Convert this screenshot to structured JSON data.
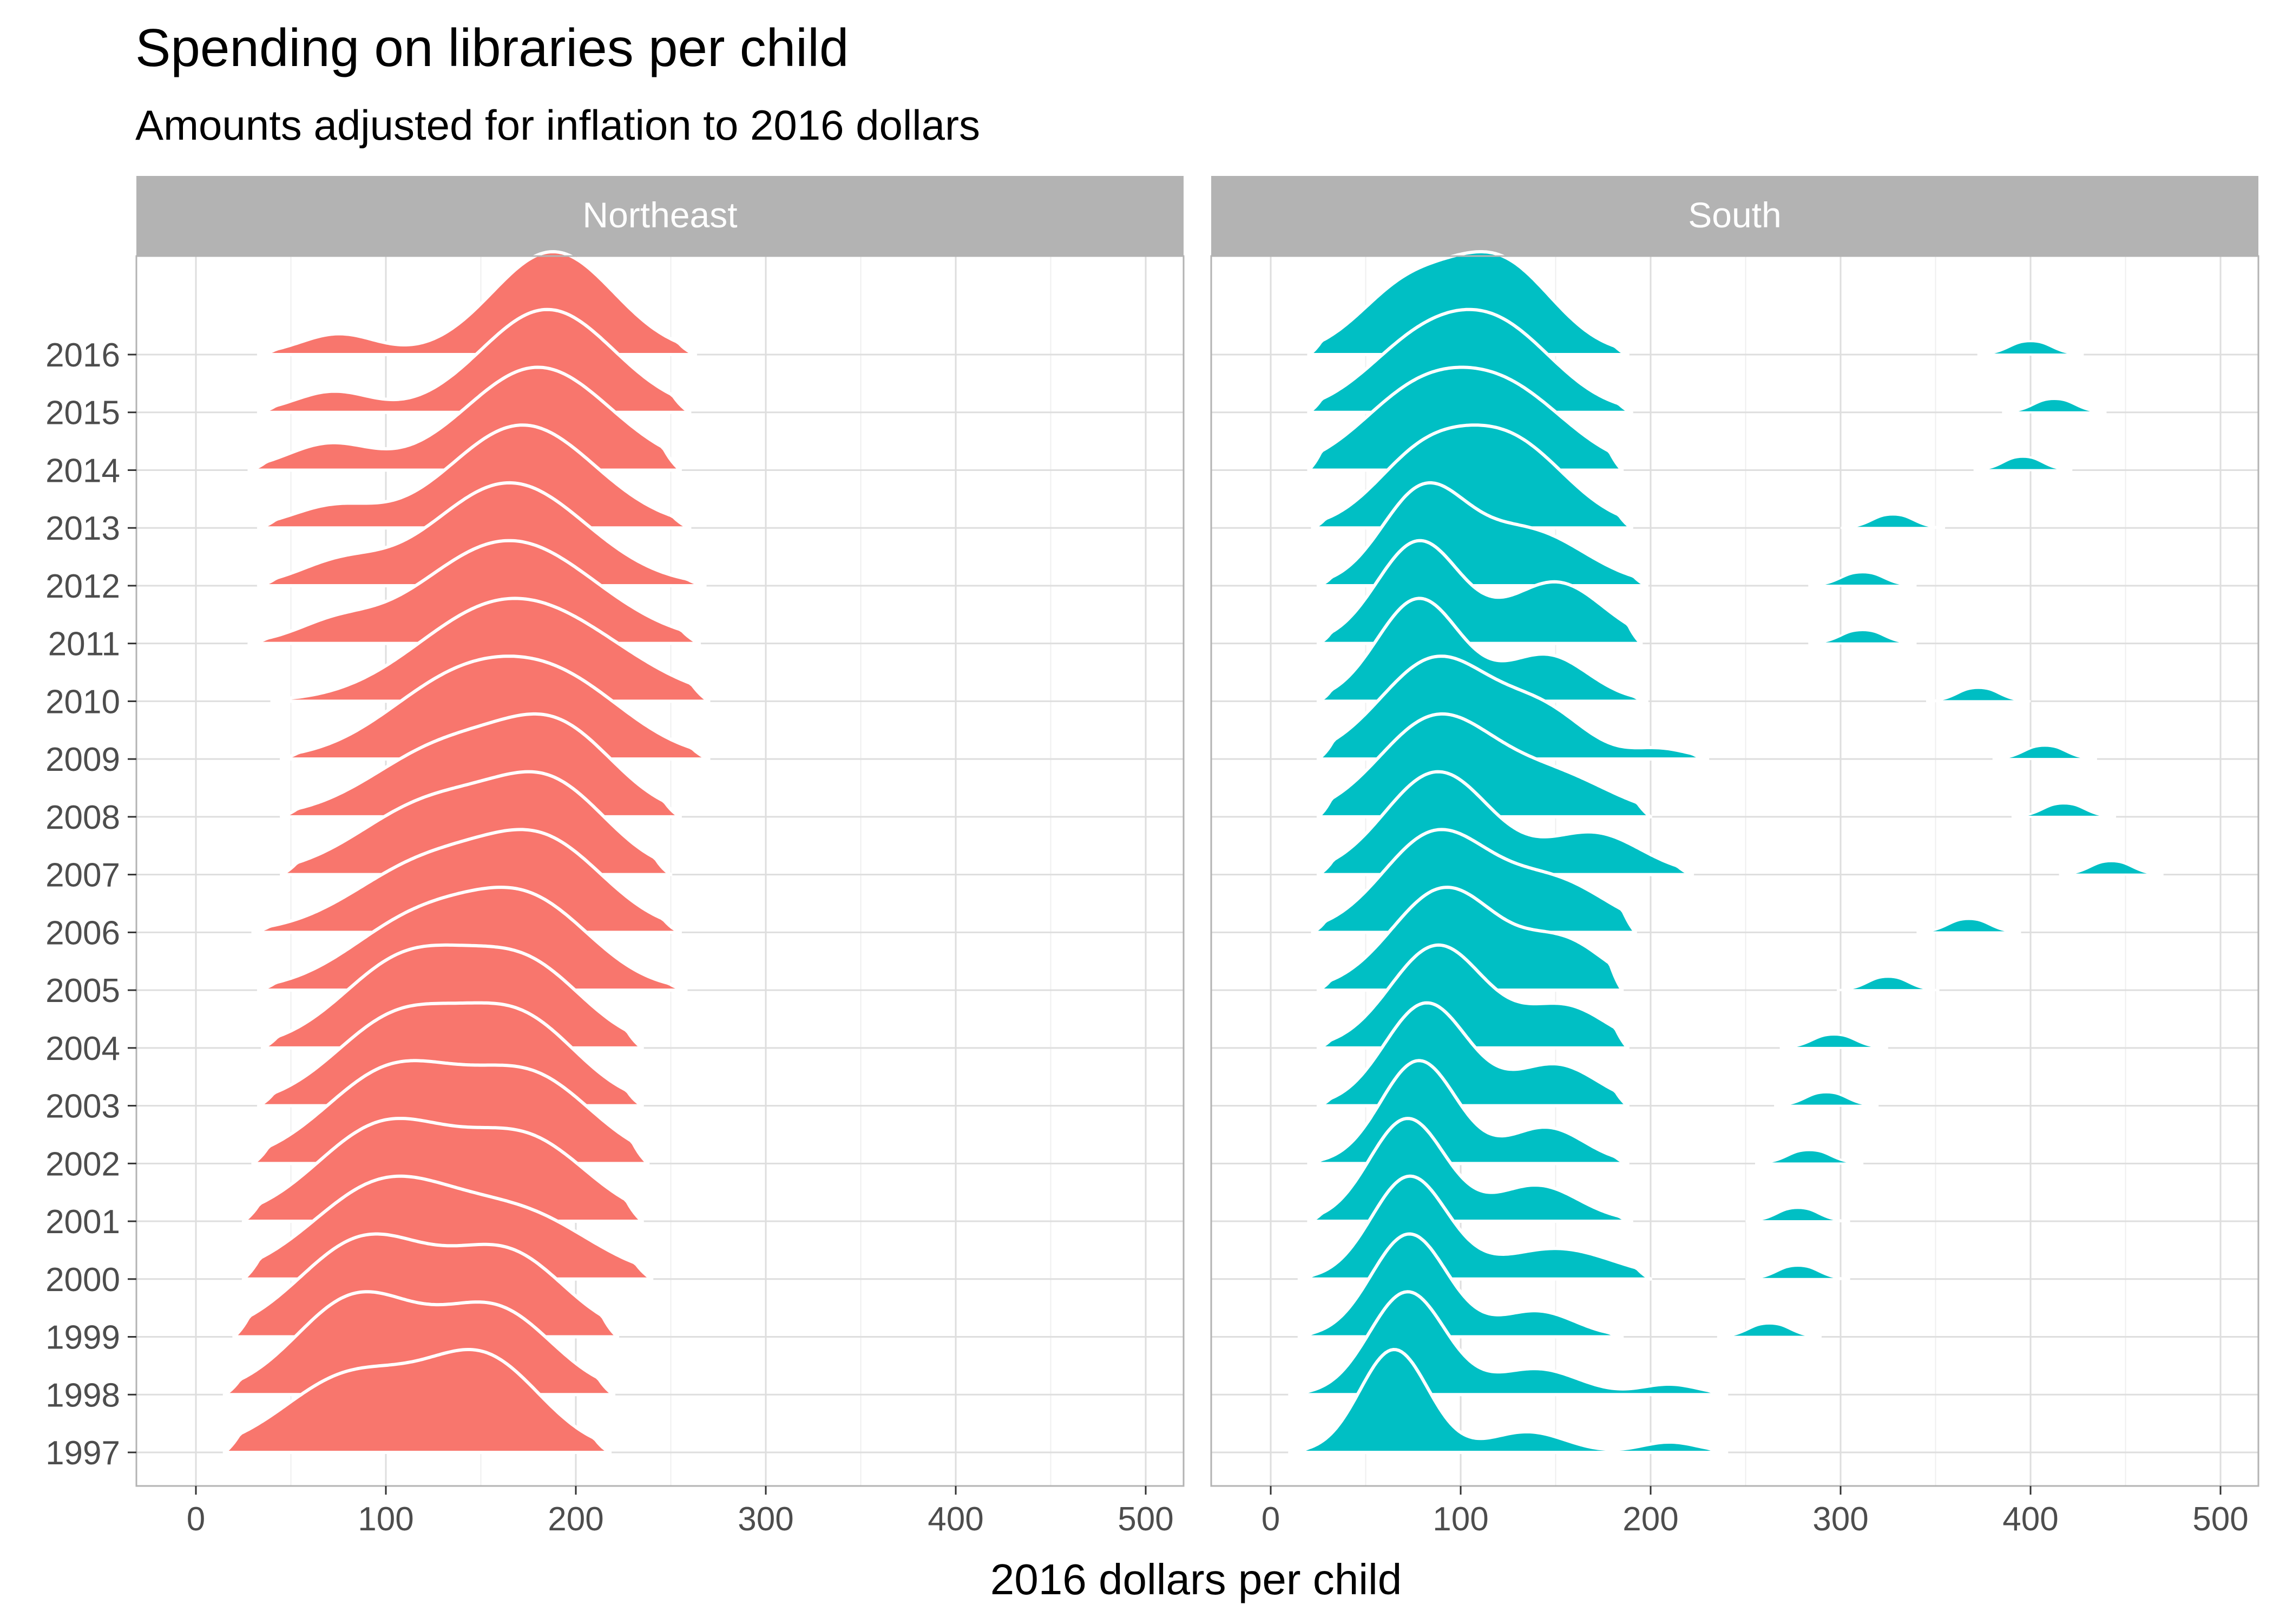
{
  "chart_data": {
    "type": "ridgeline",
    "title": "Spending on libraries per child",
    "subtitle": "Amounts adjusted for inflation to 2016 dollars",
    "xlabel": "2016 dollars per child",
    "ylabel": "",
    "xlim": [
      -30,
      515
    ],
    "x_ticks": [
      0,
      100,
      200,
      300,
      400,
      500
    ],
    "years": [
      "1997",
      "1998",
      "1999",
      "2000",
      "2001",
      "2002",
      "2003",
      "2004",
      "2005",
      "2006",
      "2007",
      "2008",
      "2009",
      "2010",
      "2011",
      "2012",
      "2013",
      "2014",
      "2015",
      "2016"
    ],
    "grid": true,
    "facets": [
      {
        "name": "Northeast",
        "color": "#F8766D",
        "series": [
          {
            "year": "1997",
            "range": [
              15,
              218
            ],
            "peaks": [
              [
                82,
                0.85,
                35
              ],
              [
                152,
                1.0,
                30
              ]
            ]
          },
          {
            "year": "1998",
            "range": [
              15,
              220
            ],
            "peaks": [
              [
                85,
                1.0,
                32
              ],
              [
                158,
                0.85,
                30
              ]
            ]
          },
          {
            "year": "1999",
            "range": [
              20,
              222
            ],
            "peaks": [
              [
                90,
                1.0,
                35
              ],
              [
                165,
                0.8,
                30
              ]
            ]
          },
          {
            "year": "2000",
            "range": [
              25,
              240
            ],
            "peaks": [
              [
                100,
                1.0,
                38
              ],
              [
                175,
                0.6,
                35
              ]
            ]
          },
          {
            "year": "2001",
            "range": [
              25,
              235
            ],
            "peaks": [
              [
                100,
                1.0,
                36
              ],
              [
                175,
                0.8,
                32
              ]
            ]
          },
          {
            "year": "2002",
            "range": [
              30,
              238
            ],
            "peaks": [
              [
                105,
                1.0,
                36
              ],
              [
                178,
                0.85,
                32
              ]
            ]
          },
          {
            "year": "2003",
            "range": [
              33,
              235
            ],
            "peaks": [
              [
                108,
                1.0,
                34
              ],
              [
                172,
                0.9,
                30
              ]
            ]
          },
          {
            "year": "2004",
            "range": [
              35,
              235
            ],
            "peaks": [
              [
                112,
                1.0,
                34
              ],
              [
                175,
                0.85,
                30
              ]
            ]
          },
          {
            "year": "2005",
            "range": [
              33,
              258
            ],
            "peaks": [
              [
                118,
                0.9,
                36
              ],
              [
                178,
                1.0,
                32
              ]
            ]
          },
          {
            "year": "2006",
            "range": [
              30,
              255
            ],
            "peaks": [
              [
                122,
                0.85,
                38
              ],
              [
                185,
                1.0,
                32
              ]
            ]
          },
          {
            "year": "2007",
            "range": [
              45,
              250
            ],
            "peaks": [
              [
                125,
                0.9,
                38
              ],
              [
                188,
                1.0,
                30
              ]
            ]
          },
          {
            "year": "2008",
            "range": [
              45,
              255
            ],
            "peaks": [
              [
                132,
                0.9,
                38
              ],
              [
                192,
                1.0,
                30
              ]
            ]
          },
          {
            "year": "2009",
            "range": [
              45,
              270
            ],
            "peaks": [
              [
                138,
                1.0,
                38
              ],
              [
                195,
                0.85,
                35
              ]
            ]
          },
          {
            "year": "2010",
            "range": [
              40,
              270
            ],
            "peaks": [
              [
                150,
                1.0,
                40
              ],
              [
                200,
                0.7,
                40
              ]
            ]
          },
          {
            "year": "2011",
            "range": [
              28,
              265
            ],
            "peaks": [
              [
                72,
                0.15,
                20
              ],
              [
                165,
                1.0,
                45
              ]
            ]
          },
          {
            "year": "2012",
            "range": [
              33,
              268
            ],
            "peaks": [
              [
                75,
                0.2,
                22
              ],
              [
                165,
                1.0,
                40
              ]
            ]
          },
          {
            "year": "2013",
            "range": [
              33,
              260
            ],
            "peaks": [
              [
                72,
                0.2,
                22
              ],
              [
                172,
                1.0,
                38
              ]
            ]
          },
          {
            "year": "2014",
            "range": [
              28,
              255
            ],
            "peaks": [
              [
                70,
                0.25,
                22
              ],
              [
                180,
                1.0,
                38
              ]
            ]
          },
          {
            "year": "2015",
            "range": [
              33,
              260
            ],
            "peaks": [
              [
                72,
                0.2,
                20
              ],
              [
                185,
                1.0,
                35
              ]
            ]
          },
          {
            "year": "2016",
            "range": [
              33,
              263
            ],
            "peaks": [
              [
                75,
                0.2,
                20
              ],
              [
                188,
                1.0,
                32
              ]
            ]
          }
        ]
      },
      {
        "name": "South",
        "color": "#00BFC4",
        "series": [
          {
            "year": "1997",
            "range": [
              10,
              240
            ],
            "peaks": [
              [
                65,
                1.0,
                18
              ],
              [
                135,
                0.2,
                20
              ],
              [
                210,
                0.1,
                15
              ]
            ],
            "outlier": null
          },
          {
            "year": "1998",
            "range": [
              10,
              240
            ],
            "peaks": [
              [
                72,
                1.0,
                20
              ],
              [
                140,
                0.25,
                22
              ],
              [
                210,
                0.1,
                15
              ]
            ],
            "outlier": null
          },
          {
            "year": "1999",
            "range": [
              15,
              185
            ],
            "peaks": [
              [
                73,
                1.0,
                20
              ],
              [
                140,
                0.25,
                20
              ]
            ],
            "outlier": [
              235,
              290
            ]
          },
          {
            "year": "2000",
            "range": [
              15,
              200
            ],
            "peaks": [
              [
                73,
                1.0,
                20
              ],
              [
                150,
                0.3,
                30
              ]
            ],
            "outlier": [
              250,
              305
            ]
          },
          {
            "year": "2001",
            "range": [
              20,
              190
            ],
            "peaks": [
              [
                72,
                1.0,
                20
              ],
              [
                140,
                0.35,
                22
              ]
            ],
            "outlier": [
              250,
              305
            ]
          },
          {
            "year": "2002",
            "range": [
              20,
              188
            ],
            "peaks": [
              [
                78,
                1.0,
                20
              ],
              [
                145,
                0.35,
                20
              ]
            ],
            "outlier": [
              255,
              312
            ]
          },
          {
            "year": "2003",
            "range": [
              25,
              188
            ],
            "peaks": [
              [
                82,
                1.0,
                22
              ],
              [
                150,
                0.4,
                22
              ]
            ],
            "outlier": [
              265,
              320
            ]
          },
          {
            "year": "2004",
            "range": [
              25,
              188
            ],
            "peaks": [
              [
                88,
                1.0,
                25
              ],
              [
                155,
                0.4,
                22
              ]
            ],
            "outlier": [
              268,
              325
            ]
          },
          {
            "year": "2005",
            "range": [
              25,
              185
            ],
            "peaks": [
              [
                92,
                1.0,
                28
              ],
              [
                155,
                0.45,
                22
              ]
            ],
            "outlier": [
              298,
              352
            ]
          },
          {
            "year": "2006",
            "range": [
              22,
              192
            ],
            "peaks": [
              [
                87,
                1.0,
                28
              ],
              [
                150,
                0.5,
                28
              ]
            ],
            "outlier": [
              340,
              395
            ]
          },
          {
            "year": "2007",
            "range": [
              25,
              222
            ],
            "peaks": [
              [
                88,
                1.0,
                28
              ],
              [
                170,
                0.4,
                25
              ]
            ],
            "outlier": [
              415,
              470
            ]
          },
          {
            "year": "2008",
            "range": [
              25,
              200
            ],
            "peaks": [
              [
                87,
                1.0,
                30
              ],
              [
                150,
                0.4,
                30
              ]
            ],
            "outlier": [
              390,
              445
            ]
          },
          {
            "year": "2009",
            "range": [
              25,
              230
            ],
            "peaks": [
              [
                88,
                1.0,
                30
              ],
              [
                145,
                0.4,
                22
              ],
              [
                205,
                0.1,
                15
              ]
            ],
            "outlier": [
              380,
              435
            ]
          },
          {
            "year": "2010",
            "range": [
              25,
              198
            ],
            "peaks": [
              [
                78,
                1.0,
                22
              ],
              [
                145,
                0.45,
                22
              ]
            ],
            "outlier": [
              345,
              400
            ]
          },
          {
            "year": "2011",
            "range": [
              25,
              195
            ],
            "peaks": [
              [
                78,
                1.0,
                22
              ],
              [
                150,
                0.6,
                25
              ]
            ],
            "outlier": [
              283,
              340
            ]
          },
          {
            "year": "2012",
            "range": [
              25,
              198
            ],
            "peaks": [
              [
                80,
                1.0,
                22
              ],
              [
                135,
                0.6,
                30
              ]
            ],
            "outlier": [
              283,
              340
            ]
          },
          {
            "year": "2013",
            "range": [
              22,
              190
            ],
            "peaks": [
              [
                78,
                0.7,
                25
              ],
              [
                125,
                1.0,
                30
              ]
            ],
            "outlier": [
              300,
              355
            ]
          },
          {
            "year": "2014",
            "range": [
              20,
              185
            ],
            "peaks": [
              [
                75,
                0.9,
                30
              ],
              [
                125,
                1.0,
                32
              ]
            ],
            "outlier": [
              370,
              422
            ]
          },
          {
            "year": "2015",
            "range": [
              20,
              190
            ],
            "peaks": [
              [
                75,
                0.7,
                28
              ],
              [
                120,
                1.0,
                30
              ]
            ],
            "outlier": [
              385,
              440
            ]
          },
          {
            "year": "2016",
            "range": [
              20,
              188
            ],
            "peaks": [
              [
                70,
                0.65,
                25
              ],
              [
                120,
                1.0,
                28
              ]
            ],
            "outlier": [
              372,
              428
            ]
          }
        ]
      }
    ]
  }
}
